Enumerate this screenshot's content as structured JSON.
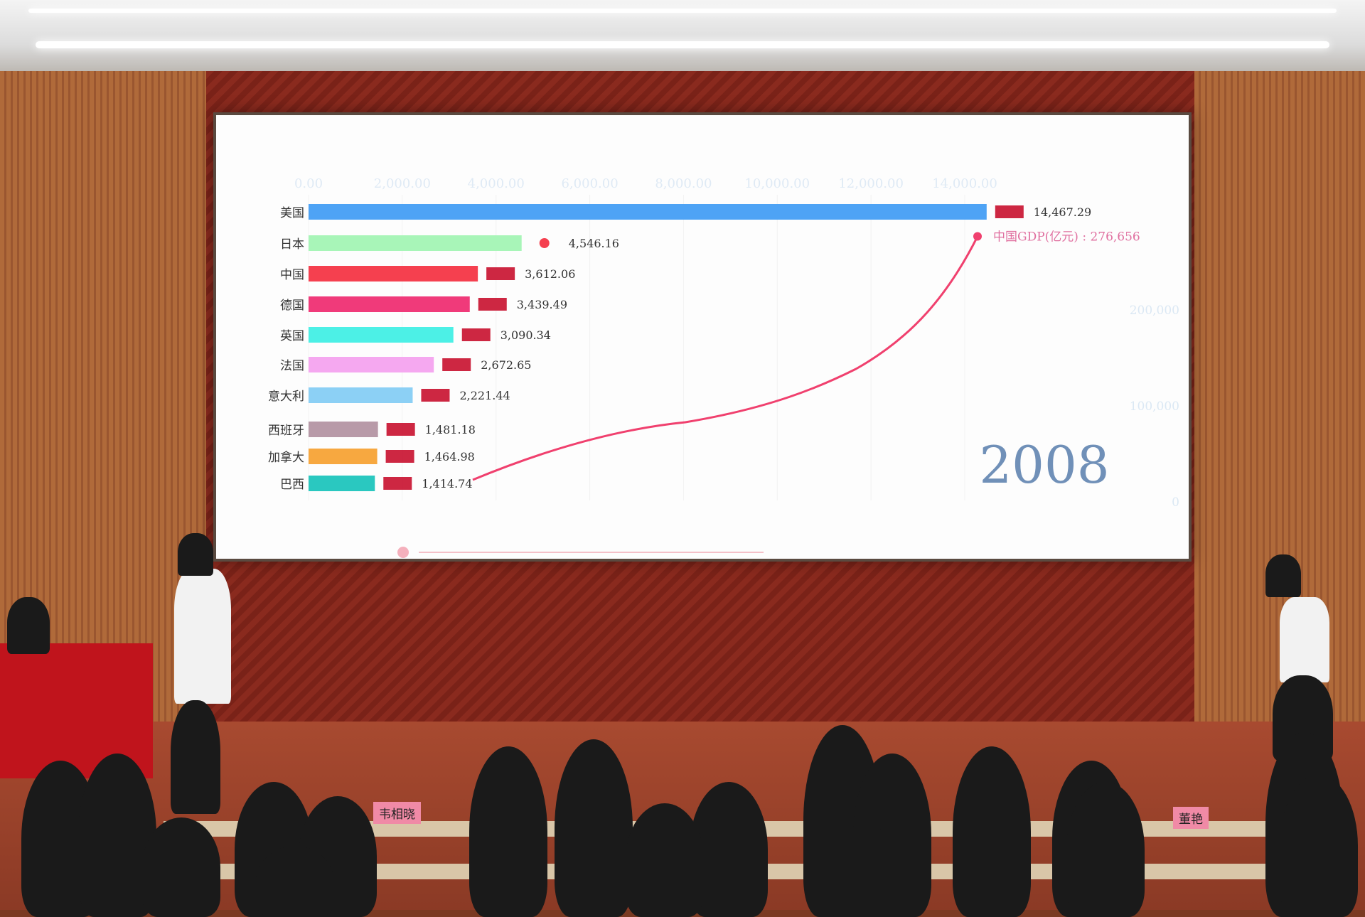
{
  "chart_data": {
    "type": "bar",
    "orientation": "horizontal",
    "categories": [
      "美国",
      "日本",
      "中国",
      "德国",
      "英国",
      "法国",
      "意大利",
      "西班牙",
      "加拿大",
      "巴西"
    ],
    "values": [
      14467.29,
      4546.16,
      3612.06,
      3439.49,
      3090.34,
      2672.65,
      2221.44,
      1481.18,
      1464.98,
      1414.74
    ],
    "value_labels": [
      "14,467.29",
      "4,546.16",
      "3,612.06",
      "3,439.49",
      "3,090.34",
      "2,672.65",
      "2,221.44",
      "1,481.18",
      "1,464.98",
      "1,414.74"
    ],
    "colors": [
      "#4ea3f5",
      "#a8f5b8",
      "#f5404f",
      "#f03a7a",
      "#4cf0e6",
      "#f5a8f0",
      "#8cd0f5",
      "#b89aa8",
      "#f7a840",
      "#2ac8c0"
    ],
    "flags": [
      "us-flag",
      "dot-marker",
      "china-flag",
      "germany-flag",
      "uk-flag",
      "france-flag",
      "italy-flag",
      "spain-flag",
      "canada-flag",
      "brazil-flag"
    ],
    "x_ticks": [
      "0.00",
      "2,000.00",
      "4,000.00",
      "6,000.00",
      "8,000.00",
      "10,000.00",
      "12,000.00",
      "14,000.00"
    ],
    "xlim": [
      0,
      14000
    ],
    "year_label": "2008",
    "line_series": {
      "label": "中国GDP(亿元) : 276,656",
      "last_value": 276656,
      "color": "#f0406e",
      "y_ticks": [
        "0",
        "100,000",
        "200,000"
      ],
      "ylim": [
        0,
        276656
      ]
    }
  },
  "nameplates": [
    "韦相晓",
    "董艳"
  ]
}
